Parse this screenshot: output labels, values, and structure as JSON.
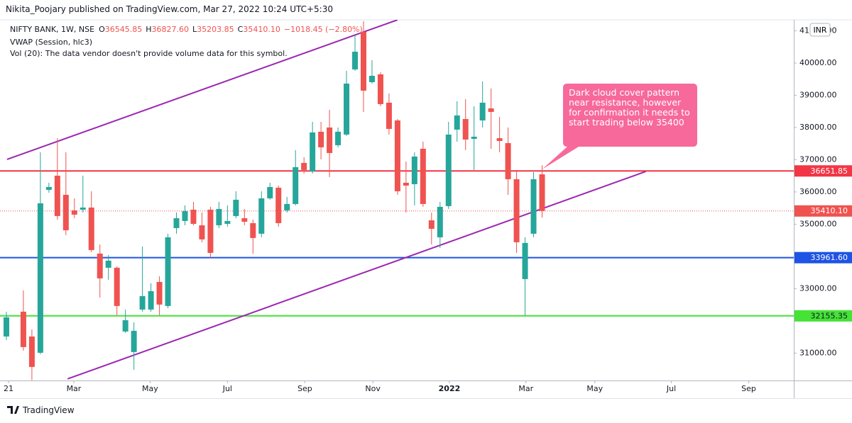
{
  "header": {
    "published": "Nikita_Poojary published on TradingView.com, Mar 27, 2022 10:24 UTC+5:30"
  },
  "legend": {
    "symbol": "NIFTY BANK, 1W, NSE",
    "ohlc": [
      {
        "label": "O",
        "value": "36545.85"
      },
      {
        "label": "H",
        "value": "36827.60"
      },
      {
        "label": "L",
        "value": "35203.85"
      },
      {
        "label": "C",
        "value": "35410.10"
      }
    ],
    "change": "−1018.45 (−2.80%)",
    "indicators": [
      "VWAP (Session, hlc3)",
      "Vol (20): The data vendor doesn't provide volume data for this symbol."
    ]
  },
  "currency": "INR",
  "footer": {
    "brand": "TradingView"
  },
  "chart_data": {
    "type": "candlestick",
    "up_color": "#26a69a",
    "down_color": "#ef5350",
    "x": [
      0,
      2,
      3,
      4,
      5,
      6,
      7,
      8,
      9,
      10,
      11,
      12,
      13,
      14,
      15,
      16,
      17,
      18,
      19,
      20,
      21,
      22,
      23,
      24,
      25,
      26,
      27,
      28,
      29,
      30,
      31,
      32,
      33,
      34,
      35,
      36,
      37,
      38,
      39,
      40,
      41,
      42,
      43,
      44,
      45,
      46,
      47,
      48,
      49,
      50,
      51,
      52,
      53,
      54,
      55,
      56,
      57,
      58,
      59,
      60,
      61,
      62,
      63
    ],
    "open": [
      31515,
      32285,
      31515,
      31010,
      36065,
      36505,
      35911,
      35428,
      35450,
      35516,
      34087,
      33648,
      33648,
      31669,
      31032,
      32351,
      32351,
      33208,
      32461,
      34878,
      35098,
      35450,
      34966,
      35450,
      34966,
      35010,
      35252,
      35186,
      35032,
      34703,
      35802,
      36131,
      35428,
      35626,
      36901,
      36637,
      37868,
      38000,
      37450,
      37780,
      39802,
      40967,
      39406,
      39648,
      38769,
      38219,
      36285,
      36241,
      37340,
      35120,
      34593,
      35560,
      37934,
      38263,
      37648,
      38219,
      38593,
      37670,
      37516,
      36395,
      33296,
      34703,
      36545.85
    ],
    "high": [
      32285,
      32944,
      31735,
      37230,
      36285,
      37670,
      37230,
      35802,
      36505,
      36021,
      34373,
      34043,
      33692,
      32351,
      31955,
      34307,
      33164,
      33384,
      34703,
      35362,
      35582,
      35692,
      35362,
      35538,
      35692,
      35582,
      36021,
      35472,
      35142,
      36021,
      36285,
      36197,
      35846,
      37296,
      37076,
      38175,
      38175,
      38549,
      38000,
      39758,
      40857,
      41300,
      40088,
      39714,
      39055,
      38263,
      36945,
      37230,
      37560,
      35362,
      35692,
      38175,
      38813,
      38879,
      38659,
      39428,
      39208,
      38329,
      38000,
      36681,
      34593,
      36615,
      36827.6
    ],
    "low": [
      31406,
      31076,
      30160,
      30966,
      35977,
      35142,
      34659,
      35186,
      35362,
      34131,
      32724,
      33274,
      32175,
      31625,
      30482,
      32285,
      32285,
      32175,
      32395,
      34703,
      34966,
      34966,
      34439,
      33933,
      34878,
      34922,
      35186,
      34966,
      34087,
      34593,
      35758,
      34922,
      35362,
      35582,
      36571,
      36571,
      37010,
      36461,
      37384,
      37736,
      39758,
      38483,
      39362,
      38659,
      37780,
      35911,
      35362,
      35582,
      35538,
      34373,
      34263,
      35472,
      37560,
      37296,
      36681,
      38000,
      37340,
      37230,
      35911,
      34109,
      32155,
      34593,
      35203.85
    ],
    "close": [
      32109,
      31186,
      30570,
      35648,
      36153,
      35252,
      34812,
      35296,
      35516,
      34197,
      33318,
      33867,
      32461,
      32021,
      31691,
      32768,
      32922,
      32505,
      34593,
      35186,
      35406,
      35010,
      34527,
      34109,
      35472,
      35098,
      35758,
      35076,
      34571,
      35802,
      36153,
      35032,
      35626,
      36769,
      36681,
      37846,
      37384,
      37208,
      37868,
      39362,
      40351,
      39143,
      39604,
      38725,
      37956,
      36021,
      36197,
      37098,
      35626,
      34856,
      35538,
      37780,
      38373,
      37626,
      37714,
      38769,
      38483,
      37582,
      36395,
      34439,
      34417,
      36395,
      35410.1
    ],
    "xlim": [
      -0.75,
      92.6
    ],
    "ylim": [
      30150,
      41340
    ],
    "xticks": [
      {
        "value": 0.25,
        "label": "21"
      },
      {
        "value": 7.93,
        "label": "Mar"
      },
      {
        "value": 16.9,
        "label": "May"
      },
      {
        "value": 26.0,
        "label": "Jul"
      },
      {
        "value": 35.1,
        "label": "Sep"
      },
      {
        "value": 43.1,
        "label": "Nov"
      },
      {
        "value": 52.1,
        "label": "2022"
      },
      {
        "value": 61.1,
        "label": "Mar"
      },
      {
        "value": 69.2,
        "label": "May"
      },
      {
        "value": 78.2,
        "label": "Jul"
      },
      {
        "value": 87.3,
        "label": "Sep"
      }
    ],
    "yticks": [
      {
        "value": 31000,
        "label": "31000.00"
      },
      {
        "value": 33000,
        "label": "33000.00"
      },
      {
        "value": 35000,
        "label": "35000.00"
      },
      {
        "value": 36000,
        "label": "36000.00"
      },
      {
        "value": 37000,
        "label": "37000.00"
      },
      {
        "value": 38000,
        "label": "38000.00"
      },
      {
        "value": 39000,
        "label": "39000.00"
      },
      {
        "value": 40000,
        "label": "40000.00"
      },
      {
        "value": 41000,
        "label": "41000.00"
      }
    ],
    "grid": false,
    "hlines": [
      {
        "value": 36651.85,
        "label": "36651.85",
        "color": "#f23645",
        "style": "solid",
        "text_color": "#ffffff"
      },
      {
        "value": 35410.1,
        "label": "35410.10",
        "color": "#ef5350",
        "style": "dotted",
        "text_color": "#ffffff"
      },
      {
        "value": 33961.6,
        "label": "33961.60",
        "color": "#1e53e5",
        "style": "solid",
        "text_color": "#ffffff"
      },
      {
        "value": 32155.35,
        "label": "32155.35",
        "color": "#44e336",
        "style": "solid",
        "text_color": "#131722"
      }
    ],
    "trendlines": [
      {
        "color": "#9c27b0",
        "points": [
          [
            0.08,
            37010
          ],
          [
            46.0,
            41340
          ]
        ]
      },
      {
        "color": "#9c27b0",
        "points": [
          [
            7.2,
            30200
          ],
          [
            75.2,
            36636
          ]
        ]
      }
    ],
    "annotation": {
      "text": "Dark cloud cover pattern near resistance, however for confirmation it needs to start trading below 35400",
      "color": "#f7699a",
      "anchor": [
        63,
        36700
      ]
    }
  }
}
